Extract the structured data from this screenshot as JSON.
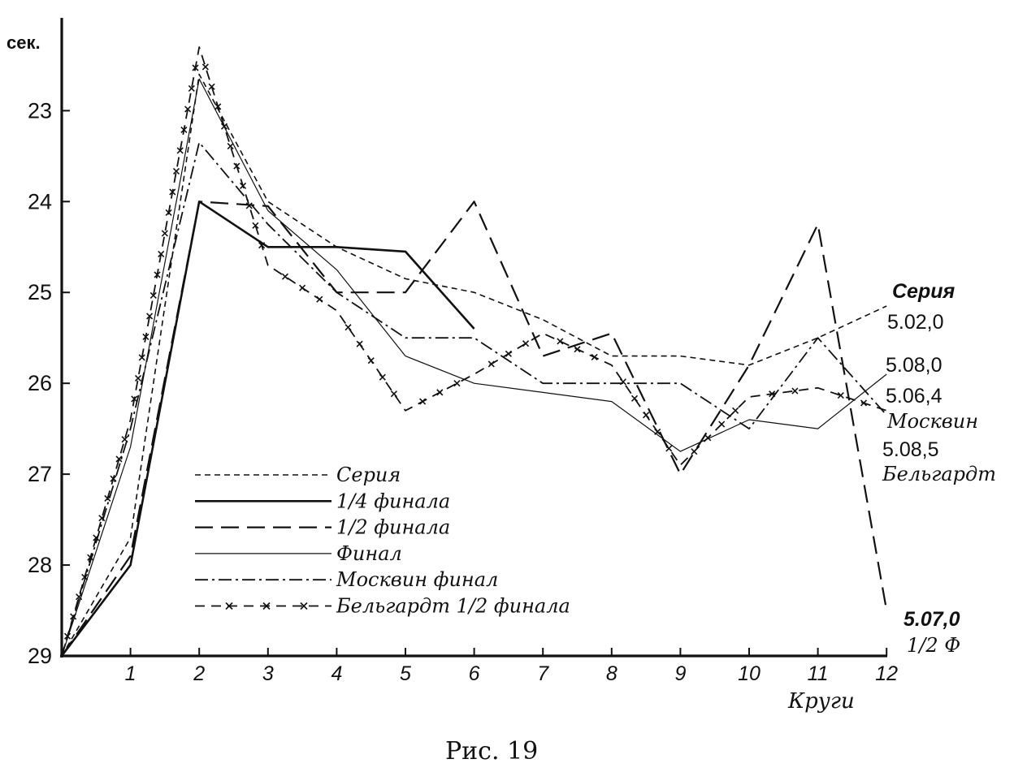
{
  "chart_data": {
    "type": "line",
    "title": "",
    "ylabel": "сек.",
    "xlabel": "Круги",
    "x": [
      0,
      1,
      2,
      3,
      4,
      5,
      6,
      7,
      8,
      9,
      10,
      11,
      12
    ],
    "x_tick_labels": [
      "1",
      "2",
      "3",
      "4",
      "5",
      "6",
      "7",
      "8",
      "9",
      "10",
      "11",
      "12"
    ],
    "y_ticks": [
      23,
      24,
      25,
      26,
      27,
      28,
      29
    ],
    "y_tick_labels": [
      "23",
      "24",
      "25",
      "26",
      "27",
      "28",
      "29"
    ],
    "ylim": [
      29,
      22.3
    ],
    "y_inverted": true,
    "grid": false,
    "legend": "inside-bottom-left",
    "series": [
      {
        "name": "Серия",
        "style": "dashed",
        "x": [
          0,
          1,
          2,
          3,
          4,
          5,
          6,
          7,
          8,
          9,
          10,
          11,
          12
        ],
        "values": [
          29,
          27.7,
          22.6,
          24.0,
          24.5,
          24.85,
          25.0,
          25.3,
          25.7,
          25.7,
          25.8,
          25.5,
          25.15
        ]
      },
      {
        "name": "1/4 финала",
        "style": "solid-bold",
        "x": [
          0,
          1,
          2,
          3,
          4,
          5,
          6
        ],
        "values": [
          29,
          28.0,
          24.0,
          24.5,
          24.5,
          24.55,
          25.4
        ]
      },
      {
        "name": "1/2 финала",
        "style": "long-dash",
        "x": [
          0,
          1,
          2,
          3,
          4,
          5,
          6,
          7,
          8,
          9,
          10,
          11,
          12
        ],
        "values": [
          29,
          27.9,
          24.0,
          24.05,
          25.0,
          25.0,
          24.0,
          25.7,
          25.45,
          27.0,
          25.8,
          24.25,
          28.5
        ]
      },
      {
        "name": "Финал",
        "style": "solid-thin",
        "x": [
          0,
          1,
          2,
          3,
          4,
          5,
          6,
          7,
          8,
          9,
          10,
          11,
          12
        ],
        "values": [
          29,
          26.7,
          22.65,
          24.1,
          24.75,
          25.7,
          26.0,
          26.1,
          26.2,
          26.75,
          26.4,
          26.5,
          25.9
        ]
      },
      {
        "name": "Москвин финал",
        "style": "dash-dot",
        "x": [
          0,
          1,
          2,
          3,
          4,
          5,
          6,
          7,
          8,
          9,
          10,
          11,
          12
        ],
        "values": [
          29,
          26.5,
          23.35,
          24.25,
          25.0,
          25.5,
          25.5,
          26.0,
          26.0,
          26.0,
          26.5,
          25.5,
          26.35
        ]
      },
      {
        "name": "Бельгардт 1/2 финала",
        "style": "dash-x",
        "x": [
          0,
          1,
          2,
          3,
          4,
          5,
          6,
          7,
          8,
          9,
          10,
          11,
          12
        ],
        "values": [
          29,
          26.4,
          22.3,
          24.7,
          25.2,
          26.3,
          25.9,
          25.45,
          25.8,
          26.9,
          26.15,
          26.05,
          26.3
        ]
      }
    ],
    "end_annotations": [
      {
        "text": "Серия",
        "style": "bold"
      },
      {
        "text": "5.02,0",
        "style": "plain"
      },
      {
        "text": "5.08,0",
        "style": "plain"
      },
      {
        "text": "5.06,4",
        "style": "plain"
      },
      {
        "text": "Москвин",
        "style": "italic"
      },
      {
        "text": "5.08,5",
        "style": "plain"
      },
      {
        "text": "Бельгардт",
        "style": "italic"
      },
      {
        "text": "5.07,0",
        "style": "bold"
      },
      {
        "text": "1/2 Ф",
        "style": "italic"
      }
    ]
  },
  "caption": "Рис.  19"
}
